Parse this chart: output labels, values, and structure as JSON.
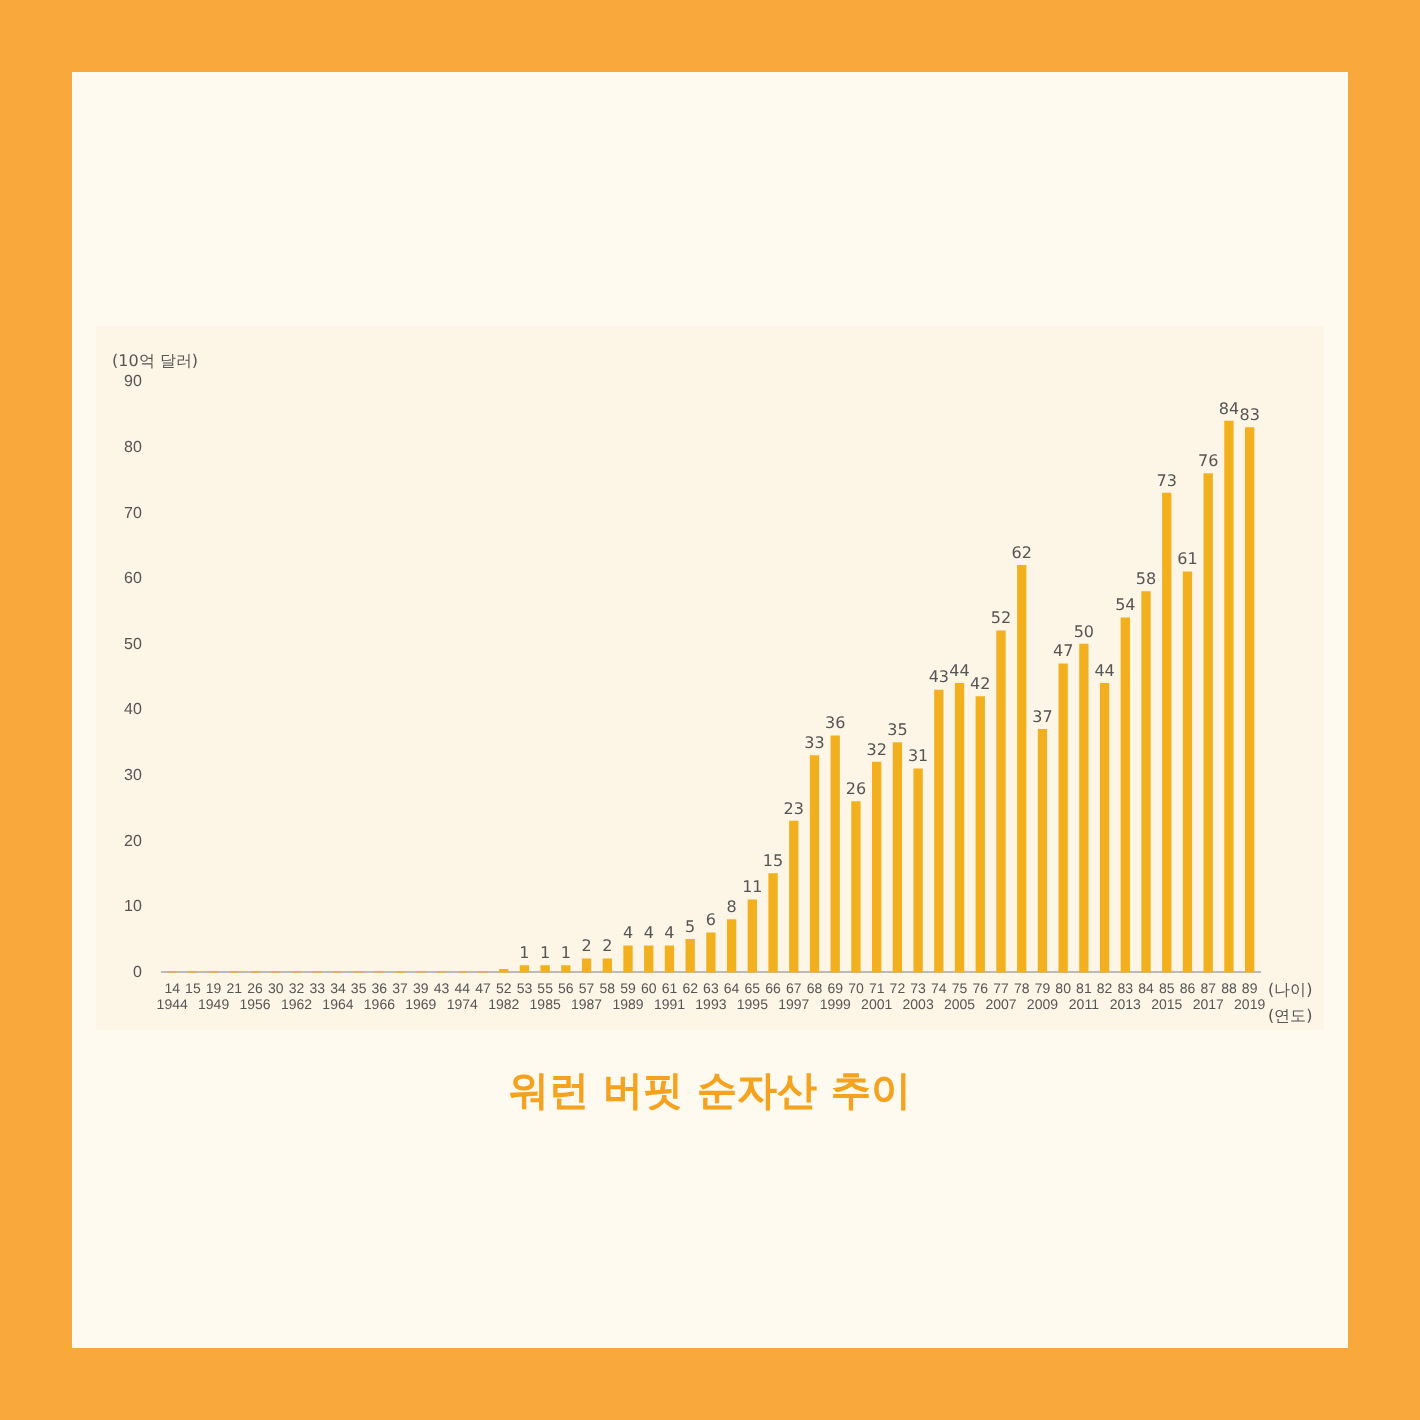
{
  "chart_data": {
    "type": "bar",
    "title": "워런 버핏 순자산 추이",
    "ylabel": "(10억 달러)",
    "xlabel": "(나이)\n(연도)",
    "categories": [
      "14\n1944",
      "15",
      "19\n1949",
      "21",
      "26\n1956",
      "30",
      "32\n1962",
      "33",
      "34\n1964",
      "35",
      "36\n1966",
      "37",
      "39\n1969",
      "43",
      "44\n1974",
      "47",
      "52\n1982",
      "53",
      "55\n1985",
      "56",
      "57\n1987",
      "58",
      "59\n1989",
      "60",
      "61\n1991",
      "62",
      "63\n1993",
      "64",
      "65\n1995",
      "66",
      "67\n1997",
      "68",
      "69\n1999",
      "70",
      "71\n2001",
      "72",
      "73\n2003",
      "74",
      "75\n2005",
      "76",
      "77\n2007",
      "78",
      "79\n2009",
      "80",
      "81\n2011",
      "82",
      "83\n2013",
      "84",
      "85\n2015",
      "86",
      "87\n2017",
      "88",
      "89\n2019"
    ],
    "values": [
      0.1,
      0.1,
      0.1,
      0.1,
      0.1,
      0.1,
      0.1,
      0.1,
      0.1,
      0.1,
      0.1,
      0.1,
      0.1,
      0.1,
      0.1,
      0.1,
      0.4,
      1,
      1,
      1,
      2,
      2,
      4,
      4,
      4,
      5,
      6,
      8,
      11,
      15,
      23,
      33,
      36,
      26,
      32,
      35,
      31,
      43,
      44,
      42,
      52,
      62,
      37,
      47,
      50,
      44,
      54,
      58,
      73,
      61,
      76,
      84,
      83
    ],
    "value_labels": [
      null,
      null,
      null,
      null,
      null,
      null,
      null,
      null,
      null,
      null,
      null,
      null,
      null,
      null,
      null,
      null,
      null,
      "1",
      "1",
      "1",
      "2",
      "2",
      "4",
      "4",
      "4",
      "5",
      "6",
      "8",
      "11",
      "15",
      "23",
      "33",
      "36",
      "26",
      "32",
      "35",
      "31",
      "43",
      "44",
      "42",
      "52",
      "62",
      "37",
      "47",
      "50",
      "44",
      "54",
      "58",
      "73",
      "61",
      "76",
      "84",
      "83"
    ],
    "color": "#f2b01e",
    "ylim": [
      0,
      90
    ],
    "yticks": [
      0,
      10,
      20,
      30,
      40,
      50,
      60,
      70,
      80,
      90
    ],
    "grid": false,
    "legend": false
  }
}
